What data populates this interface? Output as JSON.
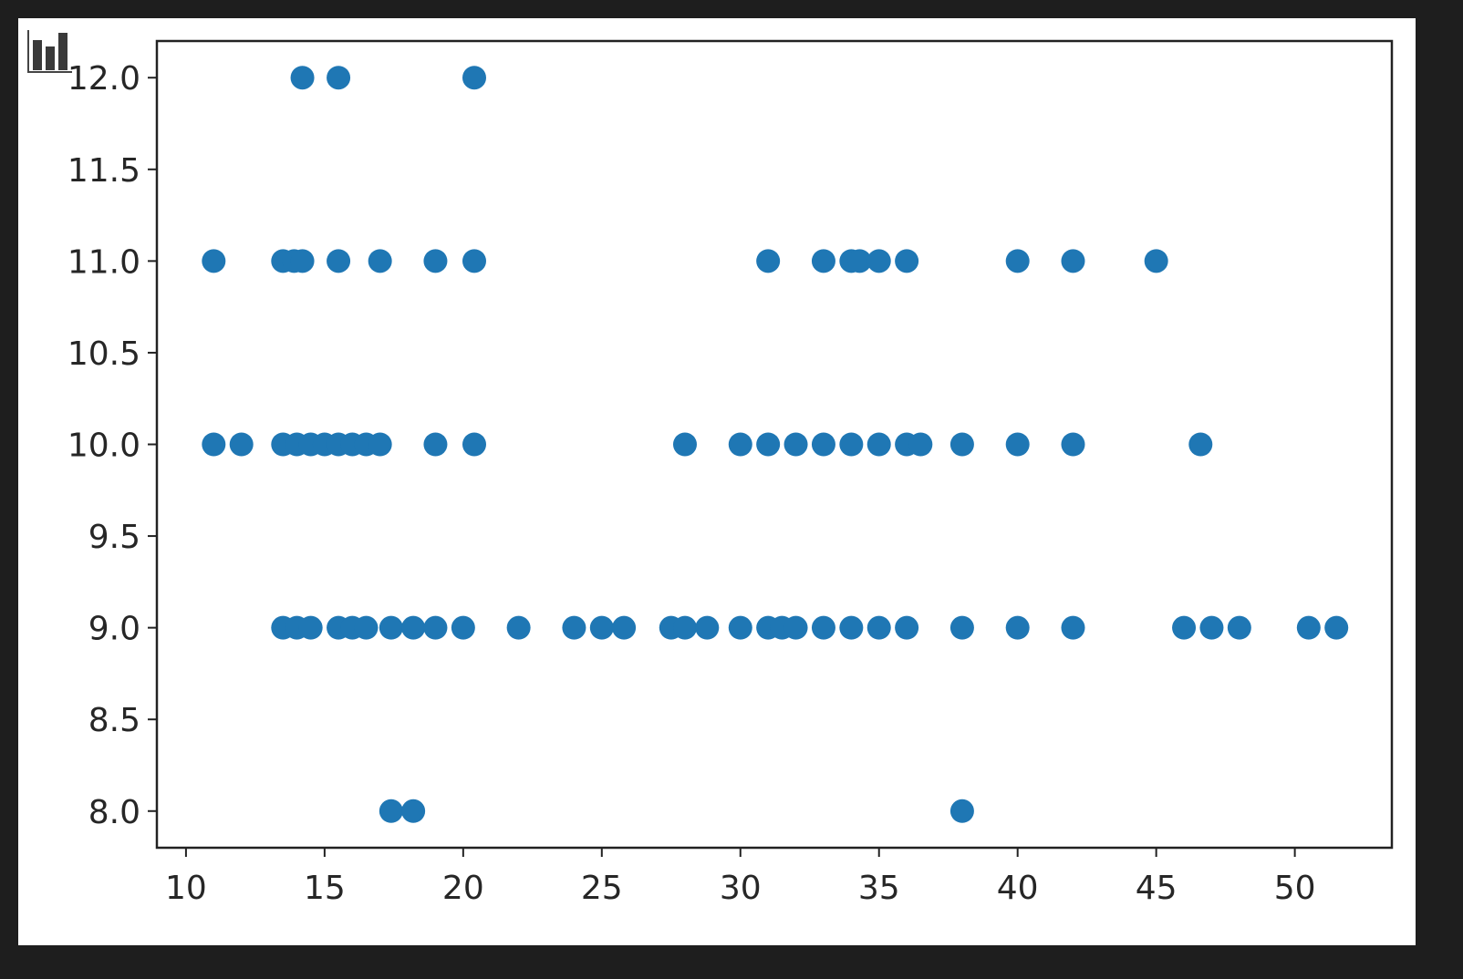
{
  "chart_data": {
    "type": "scatter",
    "title": "",
    "xlabel": "",
    "ylabel": "",
    "xlim": [
      8.95,
      53.5
    ],
    "ylim": [
      7.8,
      12.2
    ],
    "xticks": [
      "10",
      "15",
      "20",
      "25",
      "30",
      "35",
      "40",
      "45",
      "50"
    ],
    "yticks": [
      "8.0",
      "8.5",
      "9.0",
      "9.5",
      "10.0",
      "10.5",
      "11.0",
      "11.5",
      "12.0"
    ],
    "grid": false,
    "marker_color": "#1f77b4",
    "points": [
      [
        14.2,
        12
      ],
      [
        15.5,
        12
      ],
      [
        20.4,
        12
      ],
      [
        11,
        11
      ],
      [
        13.5,
        11
      ],
      [
        13.9,
        11
      ],
      [
        14.2,
        11
      ],
      [
        15.5,
        11
      ],
      [
        17,
        11
      ],
      [
        19,
        11
      ],
      [
        20.4,
        11
      ],
      [
        31,
        11
      ],
      [
        33,
        11
      ],
      [
        34,
        11
      ],
      [
        34.3,
        11
      ],
      [
        35,
        11
      ],
      [
        36,
        11
      ],
      [
        40,
        11
      ],
      [
        42,
        11
      ],
      [
        45,
        11
      ],
      [
        11,
        10
      ],
      [
        12,
        10
      ],
      [
        13.5,
        10
      ],
      [
        14,
        10
      ],
      [
        14.5,
        10
      ],
      [
        15,
        10
      ],
      [
        15.5,
        10
      ],
      [
        16,
        10
      ],
      [
        16.5,
        10
      ],
      [
        17,
        10
      ],
      [
        19,
        10
      ],
      [
        20.4,
        10
      ],
      [
        28,
        10
      ],
      [
        30,
        10
      ],
      [
        31,
        10
      ],
      [
        32,
        10
      ],
      [
        33,
        10
      ],
      [
        34,
        10
      ],
      [
        35,
        10
      ],
      [
        36,
        10
      ],
      [
        36.5,
        10
      ],
      [
        38,
        10
      ],
      [
        40,
        10
      ],
      [
        42,
        10
      ],
      [
        46.6,
        10
      ],
      [
        13.5,
        9
      ],
      [
        14,
        9
      ],
      [
        14.5,
        9
      ],
      [
        15.5,
        9
      ],
      [
        16,
        9
      ],
      [
        16.5,
        9
      ],
      [
        17.4,
        9
      ],
      [
        18.2,
        9
      ],
      [
        19,
        9
      ],
      [
        20,
        9
      ],
      [
        22,
        9
      ],
      [
        24,
        9
      ],
      [
        25,
        9
      ],
      [
        25.8,
        9
      ],
      [
        27.5,
        9
      ],
      [
        28,
        9
      ],
      [
        28.8,
        9
      ],
      [
        30,
        9
      ],
      [
        31,
        9
      ],
      [
        31.5,
        9
      ],
      [
        32,
        9
      ],
      [
        33,
        9
      ],
      [
        34,
        9
      ],
      [
        35,
        9
      ],
      [
        36,
        9
      ],
      [
        38,
        9
      ],
      [
        40,
        9
      ],
      [
        42,
        9
      ],
      [
        46,
        9
      ],
      [
        47,
        9
      ],
      [
        48,
        9
      ],
      [
        50.5,
        9
      ],
      [
        51.5,
        9
      ],
      [
        17.4,
        8
      ],
      [
        18.2,
        8
      ],
      [
        38,
        8
      ]
    ]
  },
  "toolbar": {
    "icon": "bar-chart-icon"
  }
}
